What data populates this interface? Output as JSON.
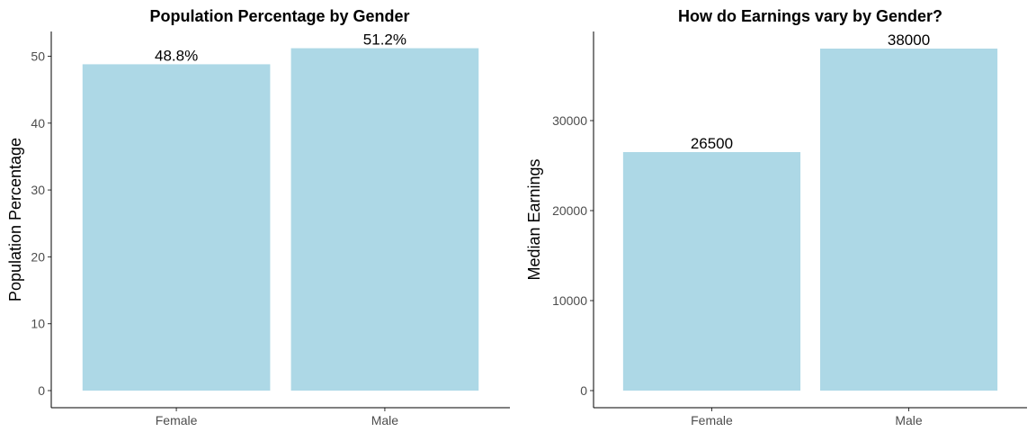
{
  "chart_data": [
    {
      "type": "bar",
      "title": "Population Percentage by Gender",
      "xlabel": "",
      "ylabel": "Population Percentage",
      "categories": [
        "Female",
        "Male"
      ],
      "values": [
        48.8,
        51.2
      ],
      "data_labels": [
        "48.8%",
        "51.2%"
      ],
      "ylim": [
        0,
        53.7
      ],
      "yticks": [
        0,
        10,
        20,
        30,
        40,
        50
      ],
      "bar_color": "#add8e6",
      "grid": false,
      "legend": "none"
    },
    {
      "type": "bar",
      "title": "How do Earnings vary by Gender?",
      "xlabel": "",
      "ylabel": "Median Earnings",
      "categories": [
        "Female",
        "Male"
      ],
      "values": [
        26500,
        38000
      ],
      "data_labels": [
        "26500",
        "38000"
      ],
      "ylim": [
        0,
        39900
      ],
      "yticks": [
        0,
        10000,
        20000,
        30000
      ],
      "bar_color": "#add8e6",
      "grid": false,
      "legend": "none"
    }
  ]
}
